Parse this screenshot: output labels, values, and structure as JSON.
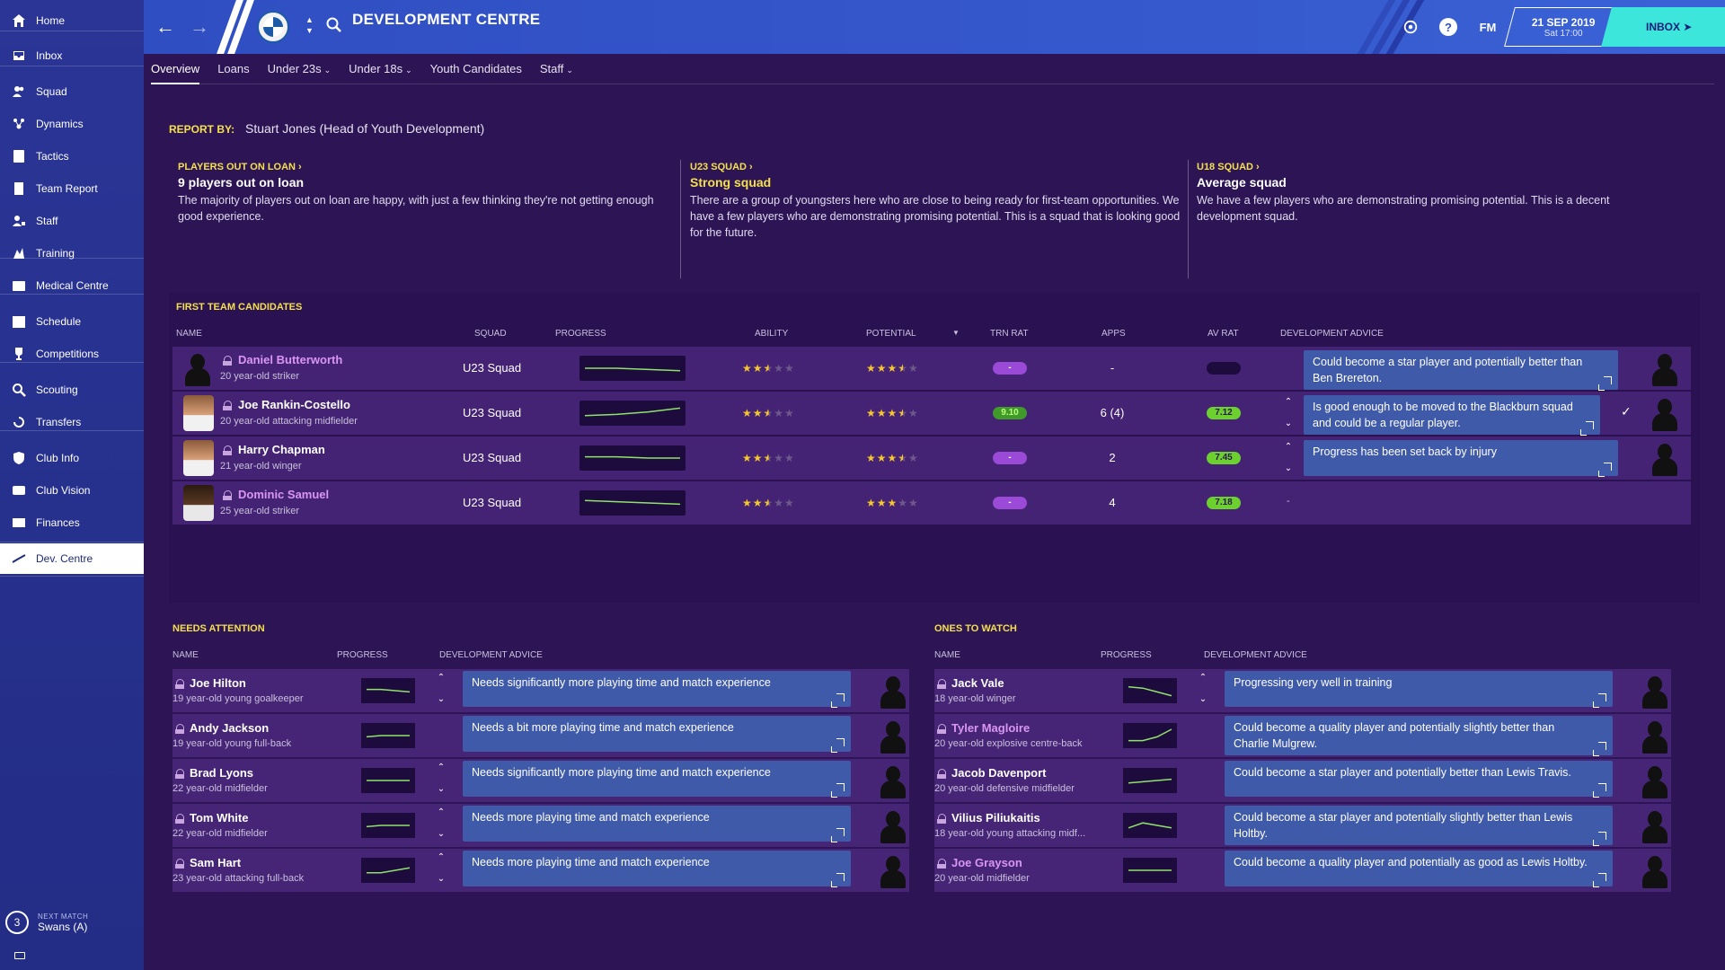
{
  "sidebar": {
    "items": [
      {
        "label": "Home",
        "icon": "home-icon"
      },
      {
        "label": "Inbox",
        "icon": "inbox-icon"
      },
      {
        "label": "Squad",
        "icon": "squad-icon"
      },
      {
        "label": "Dynamics",
        "icon": "dynamics-icon"
      },
      {
        "label": "Tactics",
        "icon": "tactics-icon"
      },
      {
        "label": "Team Report",
        "icon": "report-icon"
      },
      {
        "label": "Staff",
        "icon": "staff-icon"
      },
      {
        "label": "Training",
        "icon": "training-icon"
      },
      {
        "label": "Medical Centre",
        "icon": "medical-icon"
      },
      {
        "label": "Schedule",
        "icon": "calendar-icon"
      },
      {
        "label": "Competitions",
        "icon": "trophy-icon"
      },
      {
        "label": "Scouting",
        "icon": "magnifier-icon"
      },
      {
        "label": "Transfers",
        "icon": "transfers-icon"
      },
      {
        "label": "Club Info",
        "icon": "shield-icon"
      },
      {
        "label": "Club Vision",
        "icon": "vision-icon"
      },
      {
        "label": "Finances",
        "icon": "finances-icon"
      },
      {
        "label": "Dev. Centre",
        "icon": "dev-centre-icon"
      }
    ],
    "next_match": {
      "label": "NEXT MATCH",
      "value": "Swans (A)",
      "days": "3"
    }
  },
  "header": {
    "title": "DEVELOPMENT CENTRE",
    "fm_label": "FM",
    "help_label": "?",
    "date": "21 SEP 2019",
    "time": "Sat 17:00",
    "inbox_label": "INBOX"
  },
  "tabs": [
    {
      "label": "Overview",
      "dropdown": false
    },
    {
      "label": "Loans",
      "dropdown": false
    },
    {
      "label": "Under 23s",
      "dropdown": true
    },
    {
      "label": "Under 18s",
      "dropdown": true
    },
    {
      "label": "Youth Candidates",
      "dropdown": false
    },
    {
      "label": "Staff",
      "dropdown": true
    }
  ],
  "report": {
    "label": "REPORT BY:",
    "author": "Stuart Jones (Head of Youth Development)"
  },
  "summaries": [
    {
      "link": "PLAYERS OUT ON LOAN",
      "headline": "9 players out on loan",
      "body": "The majority of players out on loan are happy, with just a few thinking they're not getting enough good experience."
    },
    {
      "link": "U23 SQUAD",
      "headline": "Strong squad",
      "body": "There are a group of youngsters here who are close to being ready for first-team opportunities. We have a few players who are demonstrating promising potential. This is a squad that is looking good for the future."
    },
    {
      "link": "U18 SQUAD",
      "headline": "Average squad",
      "body": "We have a few players who are demonstrating promising potential. This is a decent development squad."
    }
  ],
  "first_team": {
    "title": "FIRST TEAM CANDIDATES",
    "columns": {
      "name": "NAME",
      "squad": "SQUAD",
      "progress": "PROGRESS",
      "ability": "ABILITY",
      "potential": "POTENTIAL",
      "trn_rat": "TRN RAT",
      "apps": "APPS",
      "av_rat": "AV RAT",
      "advice": "DEVELOPMENT ADVICE"
    },
    "rows": [
      {
        "name": "Daniel Butterworth",
        "pink": true,
        "desc": "20 year-old striker",
        "squad": "U23 Squad",
        "ability": 2.5,
        "potential": 3.5,
        "trn_rat": "-",
        "apps": "-",
        "av_rat": "",
        "advice": "Could become a star player and potentially better than Ben Brereton.",
        "trend": [
          0.5,
          0.5,
          0.45,
          0.4
        ]
      },
      {
        "name": "Joe Rankin-Costello",
        "pink": false,
        "desc": "20 year-old attacking midfielder",
        "squad": "U23 Squad",
        "ability": 2.5,
        "potential": 3.5,
        "trn_rat": "9.10",
        "apps": "6 (4)",
        "av_rat": "7.12",
        "advice": "Is good enough to be moved to the Blackburn squad and could be a regular player.",
        "trend": [
          0.4,
          0.45,
          0.55,
          0.7
        ]
      },
      {
        "name": "Harry Chapman",
        "pink": false,
        "desc": "21 year-old winger",
        "squad": "U23 Squad",
        "ability": 2.5,
        "potential": 3.5,
        "trn_rat": "-",
        "apps": "2",
        "av_rat": "7.45",
        "advice": "Progress has been set back by injury",
        "trend": [
          0.55,
          0.55,
          0.5,
          0.5
        ]
      },
      {
        "name": "Dominic Samuel",
        "pink": true,
        "desc": "25 year-old striker",
        "squad": "U23 Squad",
        "ability": 2.5,
        "potential": 3,
        "trn_rat": "-",
        "apps": "4",
        "av_rat": "7.18",
        "advice": "-",
        "trend": [
          0.6,
          0.55,
          0.5,
          0.45
        ]
      }
    ]
  },
  "needs_attention": {
    "title": "NEEDS ATTENTION",
    "columns": {
      "name": "NAME",
      "progress": "PROGRESS",
      "advice": "DEVELOPMENT ADVICE"
    },
    "rows": [
      {
        "name": "Joe Hilton",
        "pink": false,
        "desc": "19 year-old young goalkeeper",
        "advice": "Needs significantly more playing time and match experience",
        "trend": [
          0.55,
          0.55,
          0.5,
          0.45
        ]
      },
      {
        "name": "Andy Jackson",
        "pink": false,
        "desc": "19 year-old young full-back",
        "advice": "Needs a bit more playing time and match experience",
        "trend": [
          0.45,
          0.5,
          0.5,
          0.5
        ]
      },
      {
        "name": "Brad Lyons",
        "pink": false,
        "desc": "22 year-old midfielder",
        "advice": "Needs significantly more playing time and match experience",
        "trend": [
          0.5,
          0.5,
          0.5,
          0.5
        ]
      },
      {
        "name": "Tom White",
        "pink": false,
        "desc": "22 year-old midfielder",
        "advice": "Needs more playing time and match experience",
        "trend": [
          0.45,
          0.5,
          0.5,
          0.5
        ]
      },
      {
        "name": "Sam Hart",
        "pink": false,
        "desc": "23 year-old attacking full-back",
        "advice": "Needs more playing time and match experience",
        "trend": [
          0.4,
          0.4,
          0.5,
          0.6
        ]
      }
    ]
  },
  "ones_to_watch": {
    "title": "ONES TO WATCH",
    "columns": {
      "name": "NAME",
      "progress": "PROGRESS",
      "advice": "DEVELOPMENT ADVICE"
    },
    "rows": [
      {
        "name": "Jack Vale",
        "pink": false,
        "desc": "18 year-old winger",
        "advice": "Progressing very well in training",
        "trend": [
          0.65,
          0.6,
          0.45,
          0.3
        ]
      },
      {
        "name": "Tyler Magloire",
        "pink": true,
        "desc": "20 year-old explosive centre-back",
        "advice": "Could become a quality player and potentially slightly better than Charlie Mulgrew.",
        "trend": [
          0.3,
          0.3,
          0.45,
          0.75
        ]
      },
      {
        "name": "Jacob Davenport",
        "pink": false,
        "desc": "20 year-old defensive midfielder",
        "advice": "Could become a star player and potentially better than Lewis Travis.",
        "trend": [
          0.4,
          0.45,
          0.5,
          0.55
        ]
      },
      {
        "name": "Vilius Piliukaitis",
        "pink": false,
        "desc": "18 year-old young attacking midf...",
        "advice": "Could become a star player and potentially slightly better than Lewis Holtby.",
        "trend": [
          0.4,
          0.6,
          0.5,
          0.4
        ]
      },
      {
        "name": "Joe Grayson",
        "pink": true,
        "desc": "20 year-old midfielder",
        "advice": "Could become a quality player and potentially as good as Lewis Holtby.",
        "trend": [
          0.5,
          0.5,
          0.5,
          0.5
        ]
      }
    ]
  },
  "colors": {
    "accent": "#f4e04d",
    "inbox": "#3ce6da",
    "sidebar": "#26308f",
    "header": "#3251c3",
    "panel": "#2c1455"
  }
}
